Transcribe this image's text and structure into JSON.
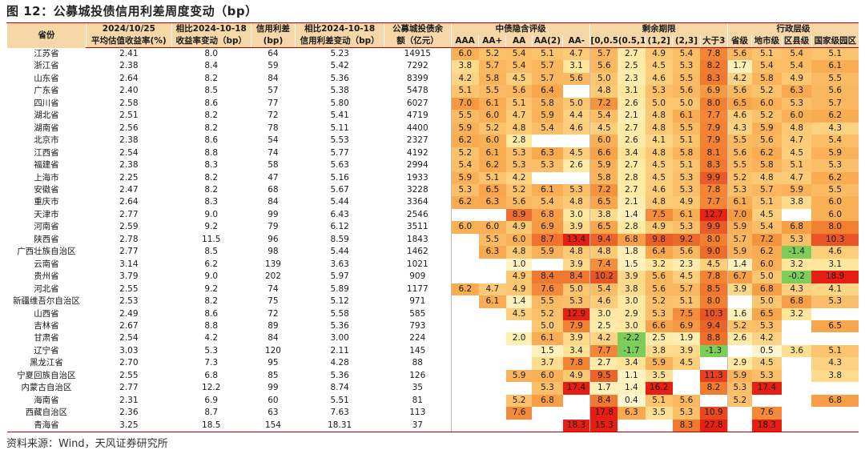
{
  "title": "图 12：公募城投债信用利差周度变动（bp）",
  "source": "资料来源：Wind，天风证券研究所",
  "headers": {
    "province": "省份",
    "c1_top": "2024/10/25",
    "c1_bot": "平均估值收益率(%)",
    "c2_top": "相比2024-10-18",
    "c2_bot": "收益率变动（bp）",
    "c3_top": "信用利差",
    "c3_bot": "(bp)",
    "c4_top": "相比2024-10-18",
    "c4_bot": "信用利差变动（bp）",
    "c5_top": "公募城投债余",
    "c5_bot": "额（亿元）",
    "group_rating": "中债隐含评级",
    "group_term": "剩余期限",
    "group_admin": "行政层级",
    "ratings": [
      "AAA",
      "AA+",
      "AA",
      "AA(2)",
      "AA-"
    ],
    "terms": [
      "[0,0.5]",
      "(0.5,1]",
      "(1,2]",
      "(2,3]",
      "大于3"
    ],
    "admins": [
      "省级",
      "地市级",
      "区县级",
      "国家级园区"
    ]
  },
  "rows": [
    {
      "name": "江苏省",
      "yield": "2.41",
      "ychg": "8.0",
      "spread": "64",
      "schg": "5.23",
      "bal": "14915",
      "cells": [
        "6.0",
        "5.2",
        "5.4",
        "5.1",
        "4.7",
        "5.7",
        "2.7",
        "4.9",
        "5.4",
        "7.8",
        "5.6",
        "5.1",
        "5.4",
        "5.1"
      ]
    },
    {
      "name": "浙江省",
      "yield": "2.38",
      "ychg": "8.4",
      "spread": "59",
      "schg": "5.42",
      "bal": "7292",
      "cells": [
        "3.8",
        "5.7",
        "5.4",
        "5.7",
        "3.1",
        "5.6",
        "2.5",
        "4.5",
        "5.3",
        "8.2",
        "1.7",
        "5.4",
        "5.4",
        "6.1"
      ]
    },
    {
      "name": "山东省",
      "yield": "2.64",
      "ychg": "8.2",
      "spread": "84",
      "schg": "5.36",
      "bal": "8399",
      "cells": [
        "4.2",
        "5.8",
        "4.5",
        "5.7",
        "5.6",
        "5.0",
        "2.3",
        "4.6",
        "5.5",
        "8.3",
        "4.2",
        "5.8",
        "4.9",
        "5.5"
      ]
    },
    {
      "name": "广东省",
      "yield": "2.40",
      "ychg": "8.5",
      "spread": "57",
      "schg": "5.38",
      "bal": "5478",
      "cells": [
        "5.1",
        "5.5",
        "5.6",
        "6.4",
        "",
        "4.8",
        "3.1",
        "5.3",
        "5.6",
        "6.9",
        "5.6",
        "5.2",
        "6.3",
        "5.6"
      ]
    },
    {
      "name": "四川省",
      "yield": "2.58",
      "ychg": "8.6",
      "spread": "77",
      "schg": "5.80",
      "bal": "6027",
      "cells": [
        "7.0",
        "6.1",
        "5.1",
        "5.8",
        "5.0",
        "7.2",
        "2.6",
        "5.0",
        "5.0",
        "8.0",
        "6.5",
        "6.0",
        "5.3",
        "5.7"
      ]
    },
    {
      "name": "湖北省",
      "yield": "2.51",
      "ychg": "8.2",
      "spread": "72",
      "schg": "5.41",
      "bal": "4719",
      "cells": [
        "5.5",
        "6.0",
        "4.7",
        "5.9",
        "4.4",
        "5.4",
        "2.1",
        "4.8",
        "6.1",
        "7.7",
        "4.6",
        "5.2",
        "6.0",
        "6.2"
      ]
    },
    {
      "name": "湖南省",
      "yield": "2.56",
      "ychg": "8.2",
      "spread": "78",
      "schg": "5.11",
      "bal": "4400",
      "cells": [
        "5.9",
        "5.2",
        "4.8",
        "5.4",
        "4.6",
        "4.5",
        "2.7",
        "4.8",
        "5.5",
        "7.9",
        "4.3",
        "5.9",
        "4.8",
        "4.3"
      ]
    },
    {
      "name": "北京市",
      "yield": "2.38",
      "ychg": "8.6",
      "spread": "54",
      "schg": "5.53",
      "bal": "2327",
      "cells": [
        "6.2",
        "6.0",
        "2.8",
        "",
        "",
        "6.0",
        "2.6",
        "4.1",
        "5.1",
        "7.9",
        "5.5",
        "5.6",
        "4.7",
        "5.4"
      ]
    },
    {
      "name": "江西省",
      "yield": "2.54",
      "ychg": "8.8",
      "spread": "74",
      "schg": "5.77",
      "bal": "4192",
      "cells": [
        "5.2",
        "6.1",
        "5.3",
        "6.3",
        "4.5",
        "6.6",
        "3.4",
        "4.8",
        "5.8",
        "8.1",
        "5.6",
        "6.2",
        "4.5",
        "5.9"
      ]
    },
    {
      "name": "福建省",
      "yield": "2.38",
      "ychg": "8.3",
      "spread": "58",
      "schg": "5.63",
      "bal": "2994",
      "cells": [
        "5.4",
        "6.2",
        "5.3",
        "5.3",
        "2.6",
        "5.9",
        "2.7",
        "4.5",
        "5.1",
        "8.3",
        "5.5",
        "5.8",
        "5.1",
        "5.3"
      ]
    },
    {
      "name": "上海市",
      "yield": "2.25",
      "ychg": "8.2",
      "spread": "47",
      "schg": "5.16",
      "bal": "1933",
      "cells": [
        "5.9",
        "5.1",
        "4.2",
        "",
        "",
        "5.8",
        "2.8",
        "4.5",
        "5.3",
        "9.9",
        "5.2",
        "4.8",
        "4.7",
        "6.2"
      ]
    },
    {
      "name": "安徽省",
      "yield": "2.47",
      "ychg": "8.2",
      "spread": "68",
      "schg": "5.67",
      "bal": "3228",
      "cells": [
        "5.3",
        "6.5",
        "5.2",
        "6.1",
        "5.3",
        "7.2",
        "2.7",
        "4.6",
        "5.3",
        "7.8",
        "5.3",
        "5.7",
        "5.9",
        "5.5"
      ]
    },
    {
      "name": "重庆市",
      "yield": "2.64",
      "ychg": "8.3",
      "spread": "84",
      "schg": "5.44",
      "bal": "3364",
      "cells": [
        "6.2",
        "6.3",
        "5.6",
        "5.4",
        "4.8",
        "6.5",
        "2.1",
        "4.8",
        "4.9",
        "7.7",
        "6.1",
        "5.1",
        "3.8",
        "6.0"
      ]
    },
    {
      "name": "天津市",
      "yield": "2.77",
      "ychg": "9.0",
      "spread": "99",
      "schg": "6.43",
      "bal": "2546",
      "cells": [
        "",
        "",
        "8.9",
        "6.8",
        "3.0",
        "3.8",
        "1.4",
        "7.5",
        "6.1",
        "12.7",
        "7.0",
        "4.5",
        "",
        "6.0"
      ]
    },
    {
      "name": "河南省",
      "yield": "2.59",
      "ychg": "9.2",
      "spread": "79",
      "schg": "6.12",
      "bal": "3511",
      "cells": [
        "6.0",
        "6.0",
        "4.9",
        "6.9",
        "3.9",
        "6.5",
        "2.8",
        "4.9",
        "5.3",
        "9.9",
        "5.9",
        "5.4",
        "6.8",
        "8.0"
      ]
    },
    {
      "name": "陕西省",
      "yield": "2.78",
      "ychg": "11.5",
      "spread": "96",
      "schg": "8.59",
      "bal": "1843",
      "cells": [
        "",
        "5.5",
        "6.0",
        "8.7",
        "13.4",
        "9.4",
        "6.8",
        "9.8",
        "9.2",
        "8.0",
        "5.7",
        "7.2",
        "5.3",
        "10.3"
      ]
    },
    {
      "name": "广西壮族自治区",
      "yield": "2.77",
      "ychg": "8.5",
      "spread": "98",
      "schg": "5.44",
      "bal": "1462",
      "cells": [
        "",
        "6.3",
        "4.8",
        "5.9",
        "4.8",
        "4.8",
        "1.8",
        "6.4",
        "5.6",
        "9.0",
        "5.9",
        "6.2",
        "-1.4",
        "4.6"
      ]
    },
    {
      "name": "云南省",
      "yield": "3.14",
      "ychg": "6.2",
      "spread": "139",
      "schg": "3.63",
      "bal": "1021",
      "cells": [
        "",
        "",
        "1.0",
        "",
        "3.9",
        "7.4",
        "1.5",
        "3.2",
        "2.3",
        "4.5",
        "1.4",
        "6.0",
        "3.2",
        "3.1"
      ]
    },
    {
      "name": "贵州省",
      "yield": "3.79",
      "ychg": "9.0",
      "spread": "202",
      "schg": "5.97",
      "bal": "909",
      "cells": [
        "",
        "",
        "4.9",
        "8.4",
        "8.4",
        "10.2",
        "3.9",
        "5.6",
        "4.5",
        "7.8",
        "6.7",
        "5.0",
        "-0.2",
        "18.9"
      ]
    },
    {
      "name": "河北省",
      "yield": "2.55",
      "ychg": "9.2",
      "spread": "74",
      "schg": "5.89",
      "bal": "1177",
      "cells": [
        "6.2",
        "4.7",
        "4.9",
        "7.6",
        "5.0",
        "5.4",
        "3.8",
        "5.6",
        "5.7",
        "8.5",
        "3.9",
        "6.8",
        "4.3",
        "4.1"
      ]
    },
    {
      "name": "新疆维吾尔自治区",
      "yield": "2.53",
      "ychg": "8.2",
      "spread": "75",
      "schg": "5.12",
      "bal": "971",
      "cells": [
        "",
        "6.1",
        "1.4",
        "5.5",
        "5.3",
        "4.6",
        "3.0",
        "5.2",
        "5.1",
        "8.0",
        "",
        "5.0",
        "6.8",
        "5.3"
      ]
    },
    {
      "name": "山西省",
      "yield": "2.49",
      "ychg": "8.6",
      "spread": "72",
      "schg": "5.58",
      "bal": "585",
      "cells": [
        "",
        "",
        "4.5",
        "5.2",
        "12.9",
        "3.0",
        "2.9",
        "5.3",
        "7.5",
        "10.3",
        "1.6",
        "6.5",
        "3.2",
        ""
      ]
    },
    {
      "name": "吉林省",
      "yield": "2.67",
      "ychg": "8.8",
      "spread": "89",
      "schg": "5.36",
      "bal": "793",
      "cells": [
        "",
        "",
        "",
        "5.0",
        "7.9",
        "2.5",
        "3.0",
        "6.6",
        "6.9",
        "9.4",
        "5.2",
        "5.3",
        "",
        "6.5"
      ]
    },
    {
      "name": "甘肃省",
      "yield": "2.54",
      "ychg": "4.2",
      "spread": "84",
      "schg": "3.00",
      "bal": "224",
      "cells": [
        "",
        "",
        "2.0",
        "6.1",
        "3.9",
        "4.2",
        "-2.2",
        "2.5",
        "1.9",
        "8.8",
        "2.6",
        "4.2",
        "",
        ""
      ]
    },
    {
      "name": "辽宁省",
      "yield": "3.03",
      "ychg": "5.3",
      "spread": "120",
      "schg": "2.11",
      "bal": "145",
      "cells": [
        "",
        "",
        "",
        "1.5",
        "3.4",
        "7.7",
        "-1.7",
        "3.8",
        "3.9",
        "-1.3",
        "",
        "0.5",
        "3.6",
        "5.1"
      ]
    },
    {
      "name": "黑龙江省",
      "yield": "2.70",
      "ychg": "7.3",
      "spread": "95",
      "schg": "4.28",
      "bal": "88",
      "cells": [
        "",
        "",
        "",
        "3.7",
        "7.8",
        "2.7",
        "3.4",
        "5.9",
        "4.5",
        "",
        "2.9",
        "4.5",
        "",
        "4.3"
      ]
    },
    {
      "name": "宁夏回族自治区",
      "yield": "2.55",
      "ychg": "6.8",
      "spread": "85",
      "schg": "5.36",
      "bal": "126",
      "cells": [
        "",
        "",
        "5.9",
        "6.0",
        "4.9",
        "9.5",
        "1.1",
        "3.5",
        "",
        "11.3",
        "5.9",
        "5.3",
        "",
        "3.8"
      ]
    },
    {
      "name": "内蒙古自治区",
      "yield": "2.77",
      "ychg": "12.2",
      "spread": "99",
      "schg": "8.74",
      "bal": "35",
      "cells": [
        "",
        "",
        "",
        "5.3",
        "17.4",
        "1.7",
        "1.4",
        "16.2",
        "",
        "8.2",
        "5.3",
        "17.4",
        "",
        ""
      ]
    },
    {
      "name": "海南省",
      "yield": "2.31",
      "ychg": "6.9",
      "spread": "60",
      "schg": "5.51",
      "bal": "81",
      "cells": [
        "",
        "",
        "5.2",
        "6.8",
        "",
        "8.4",
        "0.4",
        "5.1",
        "5.6",
        "",
        "5.2",
        "",
        "",
        "6.8"
      ]
    },
    {
      "name": "西藏自治区",
      "yield": "2.36",
      "ychg": "8.7",
      "spread": "63",
      "schg": "7.63",
      "bal": "113",
      "cells": [
        "",
        "",
        "7.6",
        "",
        "",
        "17.8",
        "6.3",
        "3.5",
        "5.3",
        "10.9",
        "",
        "7.6",
        "",
        ""
      ]
    },
    {
      "name": "青海省",
      "yield": "3.25",
      "ychg": "18.5",
      "spread": "154",
      "schg": "18.31",
      "bal": "37",
      "cells": [
        "",
        "",
        "",
        "",
        "18.3",
        "15.3",
        "",
        "",
        "8.3",
        "27.8",
        "",
        "18.3",
        "",
        ""
      ]
    }
  ]
}
